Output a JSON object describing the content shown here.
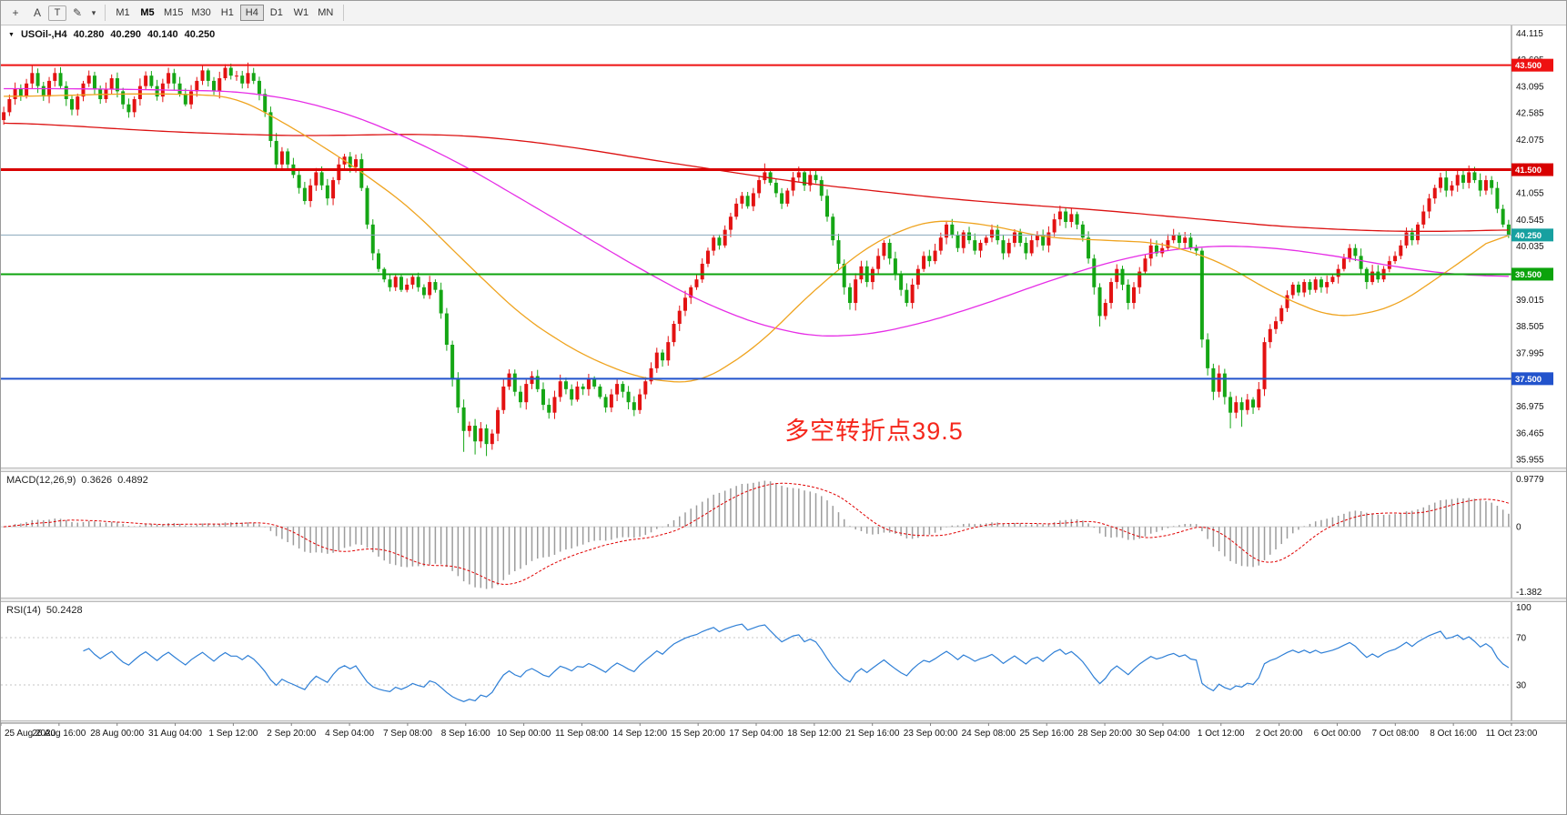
{
  "toolbar": {
    "tool_icons": [
      {
        "name": "crosshair-icon",
        "glyph": "+"
      },
      {
        "name": "text-label-icon",
        "glyph": "A"
      },
      {
        "name": "text-box-icon",
        "glyph": "T"
      },
      {
        "name": "draw-tools-icon",
        "glyph": "✎"
      },
      {
        "name": "draw-tools-caret-icon",
        "glyph": "▾"
      }
    ],
    "timeframes": [
      "M1",
      "M5",
      "M15",
      "M30",
      "H1",
      "H4",
      "D1",
      "W1",
      "MN"
    ],
    "selected_timeframe": "H4",
    "bold_timeframe": "M5"
  },
  "chart_ui": {
    "collapse_caret": "▼"
  },
  "chart_data": {
    "type": "candlestick",
    "symbol_display": "USOil-,H4",
    "symbol": "USOil-",
    "timeframe": "H4",
    "ohlc_display": {
      "open": "40.280",
      "high": "40.290",
      "low": "40.140",
      "close": "40.250"
    },
    "price_range": [
      35.8,
      44.26
    ],
    "price_ticks": [
      "44.115",
      "43.605",
      "43.095",
      "42.585",
      "42.075",
      "41.565",
      "41.055",
      "40.545",
      "40.035",
      "39.525",
      "39.015",
      "38.505",
      "37.995",
      "37.485",
      "36.975",
      "36.465",
      "35.955"
    ],
    "x_labels": [
      "25 Aug 2020",
      "26 Aug 16:00",
      "28 Aug 00:00",
      "31 Aug 04:00",
      "1 Sep 12:00",
      "2 Sep 20:00",
      "4 Sep 04:00",
      "7 Sep 08:00",
      "8 Sep 16:00",
      "10 Sep 00:00",
      "11 Sep 08:00",
      "14 Sep 12:00",
      "15 Sep 20:00",
      "17 Sep 04:00",
      "18 Sep 12:00",
      "21 Sep 16:00",
      "23 Sep 00:00",
      "24 Sep 08:00",
      "25 Sep 16:00",
      "28 Sep 20:00",
      "30 Sep 04:00",
      "1 Oct 12:00",
      "2 Oct 20:00",
      "6 Oct 00:00",
      "7 Oct 08:00",
      "8 Oct 16:00",
      "11 Oct 23:00"
    ],
    "first_open": 42.45,
    "closes": [
      42.6,
      42.85,
      43.05,
      42.9,
      43.15,
      43.35,
      43.1,
      42.9,
      43.2,
      43.35,
      43.1,
      42.85,
      42.65,
      42.9,
      43.15,
      43.3,
      43.05,
      42.85,
      43.05,
      43.25,
      43.0,
      42.75,
      42.6,
      42.85,
      43.1,
      43.3,
      43.1,
      42.9,
      43.15,
      43.35,
      43.15,
      42.95,
      42.75,
      43.0,
      43.2,
      43.4,
      43.2,
      43.0,
      43.25,
      43.45,
      43.3,
      43.3,
      43.15,
      43.35,
      43.2,
      42.95,
      42.6,
      42.05,
      41.6,
      41.85,
      41.6,
      41.4,
      41.15,
      40.9,
      41.2,
      41.45,
      41.2,
      40.95,
      41.3,
      41.6,
      41.75,
      41.55,
      41.7,
      41.15,
      40.45,
      39.9,
      39.6,
      39.4,
      39.25,
      39.45,
      39.2,
      39.3,
      39.45,
      39.25,
      39.1,
      39.35,
      39.2,
      38.75,
      38.15,
      37.5,
      36.95,
      36.5,
      36.6,
      36.3,
      36.55,
      36.25,
      36.45,
      36.9,
      37.35,
      37.6,
      37.25,
      37.05,
      37.4,
      37.55,
      37.3,
      37.0,
      36.85,
      37.15,
      37.45,
      37.3,
      37.1,
      37.35,
      37.3,
      37.5,
      37.35,
      37.15,
      36.95,
      37.2,
      37.4,
      37.25,
      37.05,
      36.9,
      37.2,
      37.45,
      37.7,
      38.0,
      37.85,
      38.2,
      38.55,
      38.8,
      39.05,
      39.25,
      39.4,
      39.7,
      39.95,
      40.2,
      40.05,
      40.35,
      40.6,
      40.85,
      41.0,
      40.8,
      41.05,
      41.3,
      41.45,
      41.25,
      41.05,
      40.85,
      41.1,
      41.35,
      41.45,
      41.2,
      41.4,
      41.3,
      41.0,
      40.6,
      40.15,
      39.7,
      39.25,
      38.95,
      39.4,
      39.65,
      39.35,
      39.6,
      39.85,
      40.1,
      39.8,
      39.5,
      39.2,
      38.95,
      39.3,
      39.6,
      39.85,
      39.75,
      39.95,
      40.2,
      40.45,
      40.25,
      40.0,
      40.3,
      40.15,
      39.95,
      40.1,
      40.2,
      40.35,
      40.15,
      39.9,
      40.1,
      40.3,
      40.1,
      39.9,
      40.15,
      40.25,
      40.05,
      40.3,
      40.55,
      40.7,
      40.5,
      40.65,
      40.45,
      40.2,
      39.8,
      39.25,
      38.7,
      38.95,
      39.35,
      39.6,
      39.3,
      38.95,
      39.25,
      39.55,
      39.8,
      40.05,
      39.9,
      40.0,
      40.15,
      40.25,
      40.1,
      40.2,
      40.0,
      39.95,
      38.25,
      37.7,
      37.25,
      37.6,
      37.15,
      36.85,
      37.05,
      36.9,
      37.1,
      36.95,
      37.3,
      38.2,
      38.45,
      38.6,
      38.85,
      39.1,
      39.3,
      39.15,
      39.35,
      39.2,
      39.4,
      39.25,
      39.35,
      39.45,
      39.6,
      39.8,
      40.0,
      39.85,
      39.6,
      39.35,
      39.55,
      39.4,
      39.6,
      39.75,
      39.85,
      40.05,
      40.3,
      40.15,
      40.45,
      40.7,
      40.95,
      41.15,
      41.35,
      41.1,
      41.2,
      41.4,
      41.25,
      41.45,
      41.3,
      41.1,
      41.3,
      41.15,
      40.75,
      40.45,
      40.25
    ],
    "wick_overrides": {
      "5": {
        "high": 43.5
      },
      "39": {
        "high": 43.52
      },
      "43": {
        "high": 43.55
      },
      "81": {
        "low": 36.1
      },
      "83": {
        "low": 36.05
      },
      "85": {
        "low": 36.02
      },
      "134": {
        "high": 41.62
      },
      "140": {
        "high": 41.56
      },
      "149": {
        "low": 38.82
      },
      "159": {
        "low": 38.88
      },
      "193": {
        "low": 38.5
      },
      "211": {
        "high": 40.0
      },
      "216": {
        "low": 36.55
      },
      "218": {
        "low": 36.58
      },
      "258": {
        "high": 41.58
      }
    },
    "candle_colors": {
      "up": "#e31212",
      "down": "#15a615"
    },
    "moving_averages": [
      {
        "name": "ma-slow",
        "color": "#dc1212",
        "points": [
          42.4,
          42.35,
          42.28,
          42.22,
          42.18,
          42.15,
          42.16,
          42.18,
          42.15,
          42.05,
          41.9,
          41.72,
          41.55,
          41.38,
          41.22,
          41.1,
          40.98,
          40.88,
          40.8,
          40.72,
          40.62,
          40.52,
          40.42,
          40.36,
          40.32,
          40.32,
          40.35
        ]
      },
      {
        "name": "ma-medium",
        "color": "#e62ee6",
        "points": [
          43.05,
          43.05,
          43.04,
          43.02,
          43.0,
          42.85,
          42.55,
          42.1,
          41.55,
          40.9,
          40.25,
          39.6,
          39.0,
          38.55,
          38.3,
          38.35,
          38.6,
          38.95,
          39.35,
          39.7,
          39.95,
          40.05,
          40.0,
          39.85,
          39.65,
          39.5,
          39.45
        ]
      },
      {
        "name": "ma-fast",
        "color": "#efa420",
        "points": [
          42.9,
          42.92,
          42.95,
          42.95,
          42.9,
          42.3,
          41.6,
          40.8,
          39.7,
          38.65,
          37.95,
          37.5,
          37.4,
          38.1,
          39.2,
          40.1,
          40.55,
          40.45,
          40.2,
          40.15,
          40.1,
          39.75,
          39.1,
          38.65,
          38.85,
          39.6,
          40.4
        ]
      }
    ],
    "levels": [
      {
        "label": "43.500",
        "value": 43.5,
        "color": "#ee1111",
        "thickness": 2
      },
      {
        "label": "41.500",
        "value": 41.5,
        "color": "#d80000",
        "thickness": 3
      },
      {
        "label": "39.500",
        "value": 39.5,
        "color": "#0ca30c",
        "thickness": 2
      },
      {
        "label": "37.500",
        "value": 37.5,
        "color": "#2253cc",
        "thickness": 2
      }
    ],
    "current_price": {
      "label": "40.250",
      "value": 40.25,
      "badge_color": "#17a0a0",
      "line_color": "#8aa8bb"
    },
    "annotation": {
      "text": "多空转折点39.5",
      "color": "#f5271c",
      "x_frac": 0.578,
      "price": 36.88,
      "font_px": 27
    },
    "macd": {
      "title": "MACD(12,26,9)",
      "fast": 12,
      "slow": 26,
      "signal_period": 9,
      "value": "0.3626",
      "signal_value": "0.4892",
      "axis_labels": [
        "0.9779",
        "0",
        "-1.382"
      ],
      "histogram_color": "#9c9c9c",
      "signal_color": "#e00000"
    },
    "rsi": {
      "title": "RSI(14)",
      "period": 14,
      "value": "50.2428",
      "axis_labels": [
        "100",
        "70",
        "30"
      ],
      "levels": [
        70,
        30
      ],
      "line_color": "#2e7fd6"
    }
  }
}
